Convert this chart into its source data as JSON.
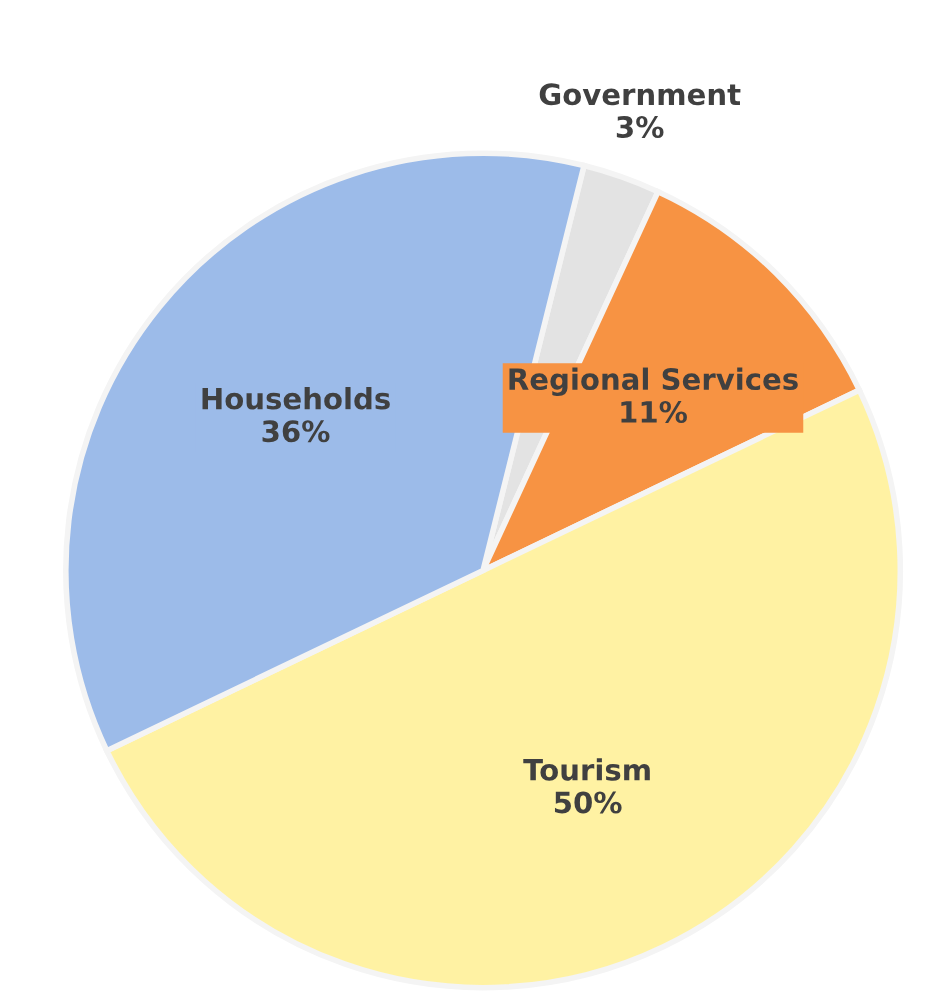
{
  "chart_data": {
    "type": "pie",
    "categories": [
      "Government",
      "Regional Services",
      "Tourism",
      "Households"
    ],
    "values": [
      3,
      11,
      50,
      36
    ],
    "value_labels": [
      "3%",
      "11%",
      "50%",
      "36%"
    ],
    "colors": [
      "#e3e3e3",
      "#f79343",
      "#fff2a3",
      "#9cbbe9"
    ],
    "legend": false
  }
}
